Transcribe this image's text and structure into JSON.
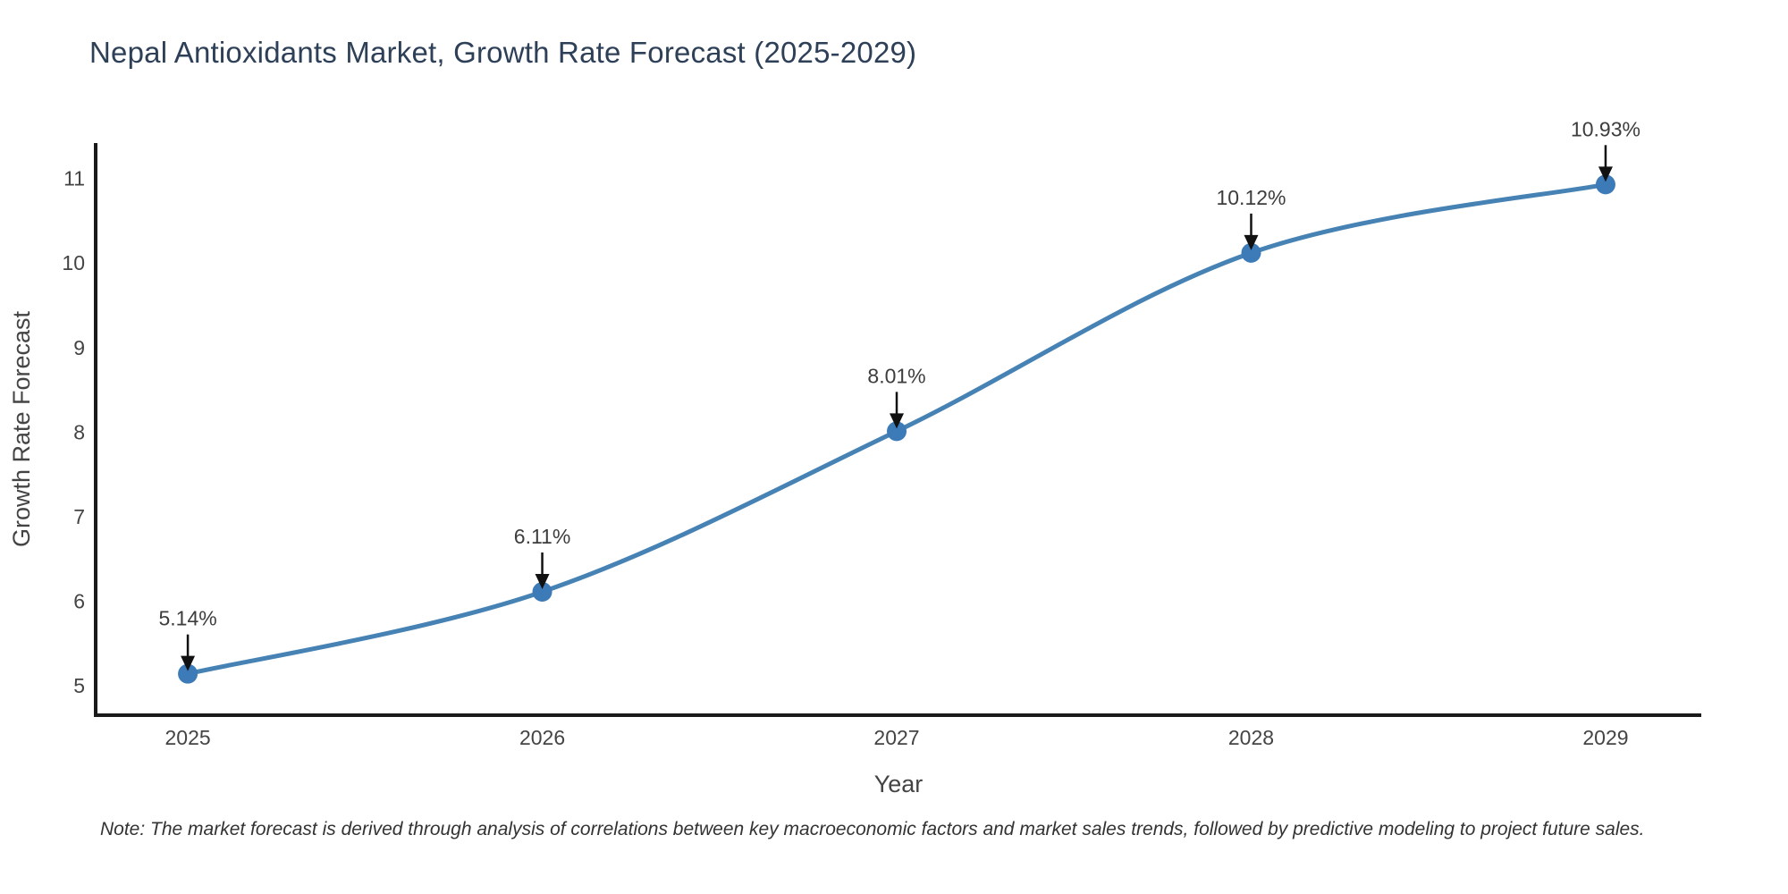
{
  "chart": {
    "title": "Nepal Antioxidants Market, Growth Rate Forecast (2025-2029)",
    "note": "Note: The market forecast is derived through analysis of correlations between key macroeconomic factors and market sales trends, followed by predictive modeling to project future sales."
  },
  "chart_data": {
    "type": "line",
    "title": "Nepal Antioxidants Market, Growth Rate Forecast (2025-2029)",
    "x": [
      2025,
      2026,
      2027,
      2028,
      2029
    ],
    "values": [
      5.14,
      6.11,
      8.01,
      10.12,
      10.93
    ],
    "annotations": [
      "5.14%",
      "6.11%",
      "8.01%",
      "10.12%",
      "10.93%"
    ],
    "xlabel": "Year",
    "ylabel": "Growth Rate Forecast",
    "xticks": [
      "2025",
      "2026",
      "2027",
      "2028",
      "2029"
    ],
    "yticks": [
      5,
      6,
      7,
      8,
      9,
      10,
      11
    ],
    "xlim": [
      2024.74,
      2029.27
    ],
    "ylim": [
      4.65,
      11.42
    ],
    "line_shape": "spline",
    "grid": false,
    "legend_position": "none",
    "colors": {
      "line": "#4682b4",
      "marker": "#3c7ab8",
      "arrow": "#111111",
      "spine": "#1a1a1a",
      "tick_text": "#444444",
      "axis_title_text": "#444444",
      "annotation_text": "#3d3d3d",
      "title_text": "#2e4057",
      "note_text": "#333333",
      "background": "#ffffff"
    }
  }
}
